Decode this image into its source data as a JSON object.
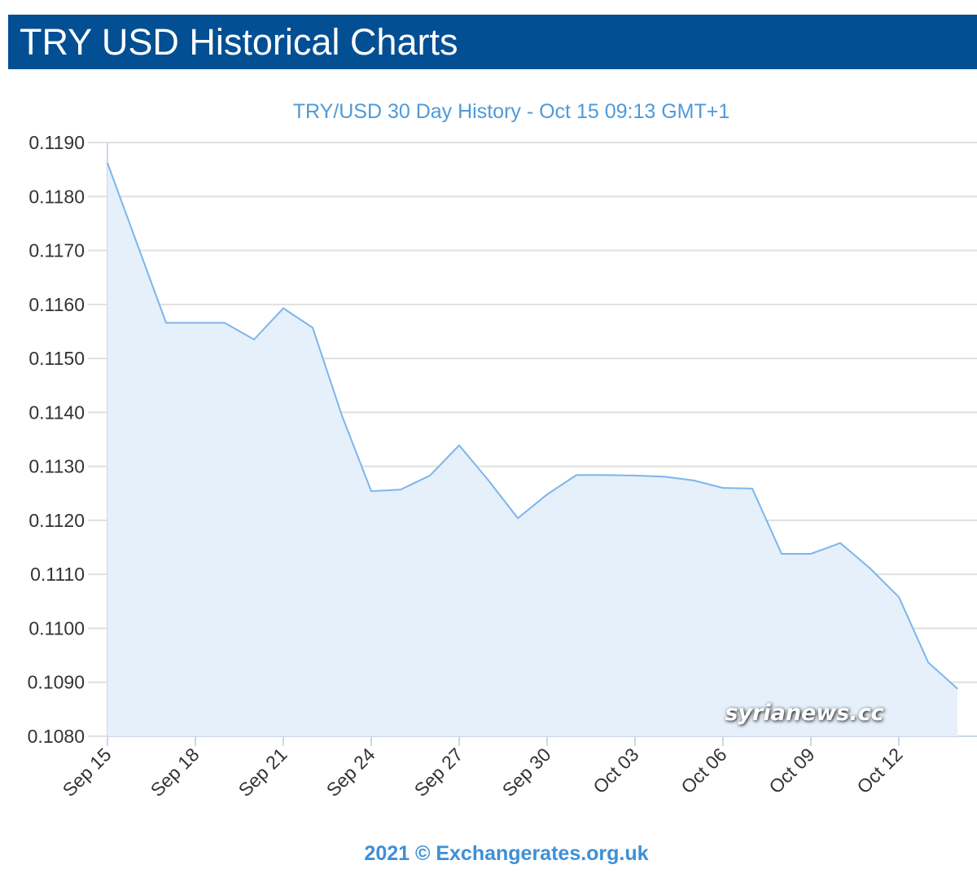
{
  "header": {
    "title": "TRY USD Historical Charts"
  },
  "watermark": "syrianews.cc",
  "credit": "2021 © Exchangerates.org.uk",
  "colors": {
    "header_bg": "#034f93",
    "line": "#7cb5ec",
    "fill": "#e6f0fa",
    "title": "#4f9ad8"
  },
  "chart_data": {
    "type": "area",
    "title": "TRY/USD 30 Day History - Oct 15 09:13 GMT+1",
    "xlabel": "",
    "ylabel": "",
    "ylim": [
      0.108,
      0.119
    ],
    "yticks": [
      "0.1080",
      "0.1090",
      "0.1100",
      "0.1110",
      "0.1120",
      "0.1130",
      "0.1140",
      "0.1150",
      "0.1160",
      "0.1170",
      "0.1180",
      "0.1190"
    ],
    "xticks": [
      "Sep 15",
      "Sep 18",
      "Sep 21",
      "Sep 24",
      "Sep 27",
      "Sep 30",
      "Oct 03",
      "Oct 06",
      "Oct 09",
      "Oct 12"
    ],
    "grid": true,
    "x": [
      "Sep 15",
      "Sep 16",
      "Sep 17",
      "Sep 18",
      "Sep 19",
      "Sep 20",
      "Sep 21",
      "Sep 22",
      "Sep 23",
      "Sep 24",
      "Sep 25",
      "Sep 26",
      "Sep 27",
      "Sep 28",
      "Sep 29",
      "Sep 30",
      "Oct 01",
      "Oct 02",
      "Oct 03",
      "Oct 04",
      "Oct 05",
      "Oct 06",
      "Oct 07",
      "Oct 08",
      "Oct 09",
      "Oct 10",
      "Oct 11",
      "Oct 12",
      "Oct 13",
      "Oct 14"
    ],
    "values": [
      0.11862,
      0.11714,
      0.11566,
      0.11566,
      0.11566,
      0.11535,
      0.11593,
      0.11557,
      0.11394,
      0.11254,
      0.11257,
      0.11283,
      0.11339,
      0.11274,
      0.11204,
      0.11248,
      0.11284,
      0.11284,
      0.11283,
      0.11281,
      0.11274,
      0.1126,
      0.11259,
      0.11138,
      0.11138,
      0.11158,
      0.11112,
      0.11058,
      0.10937,
      0.10888
    ]
  }
}
